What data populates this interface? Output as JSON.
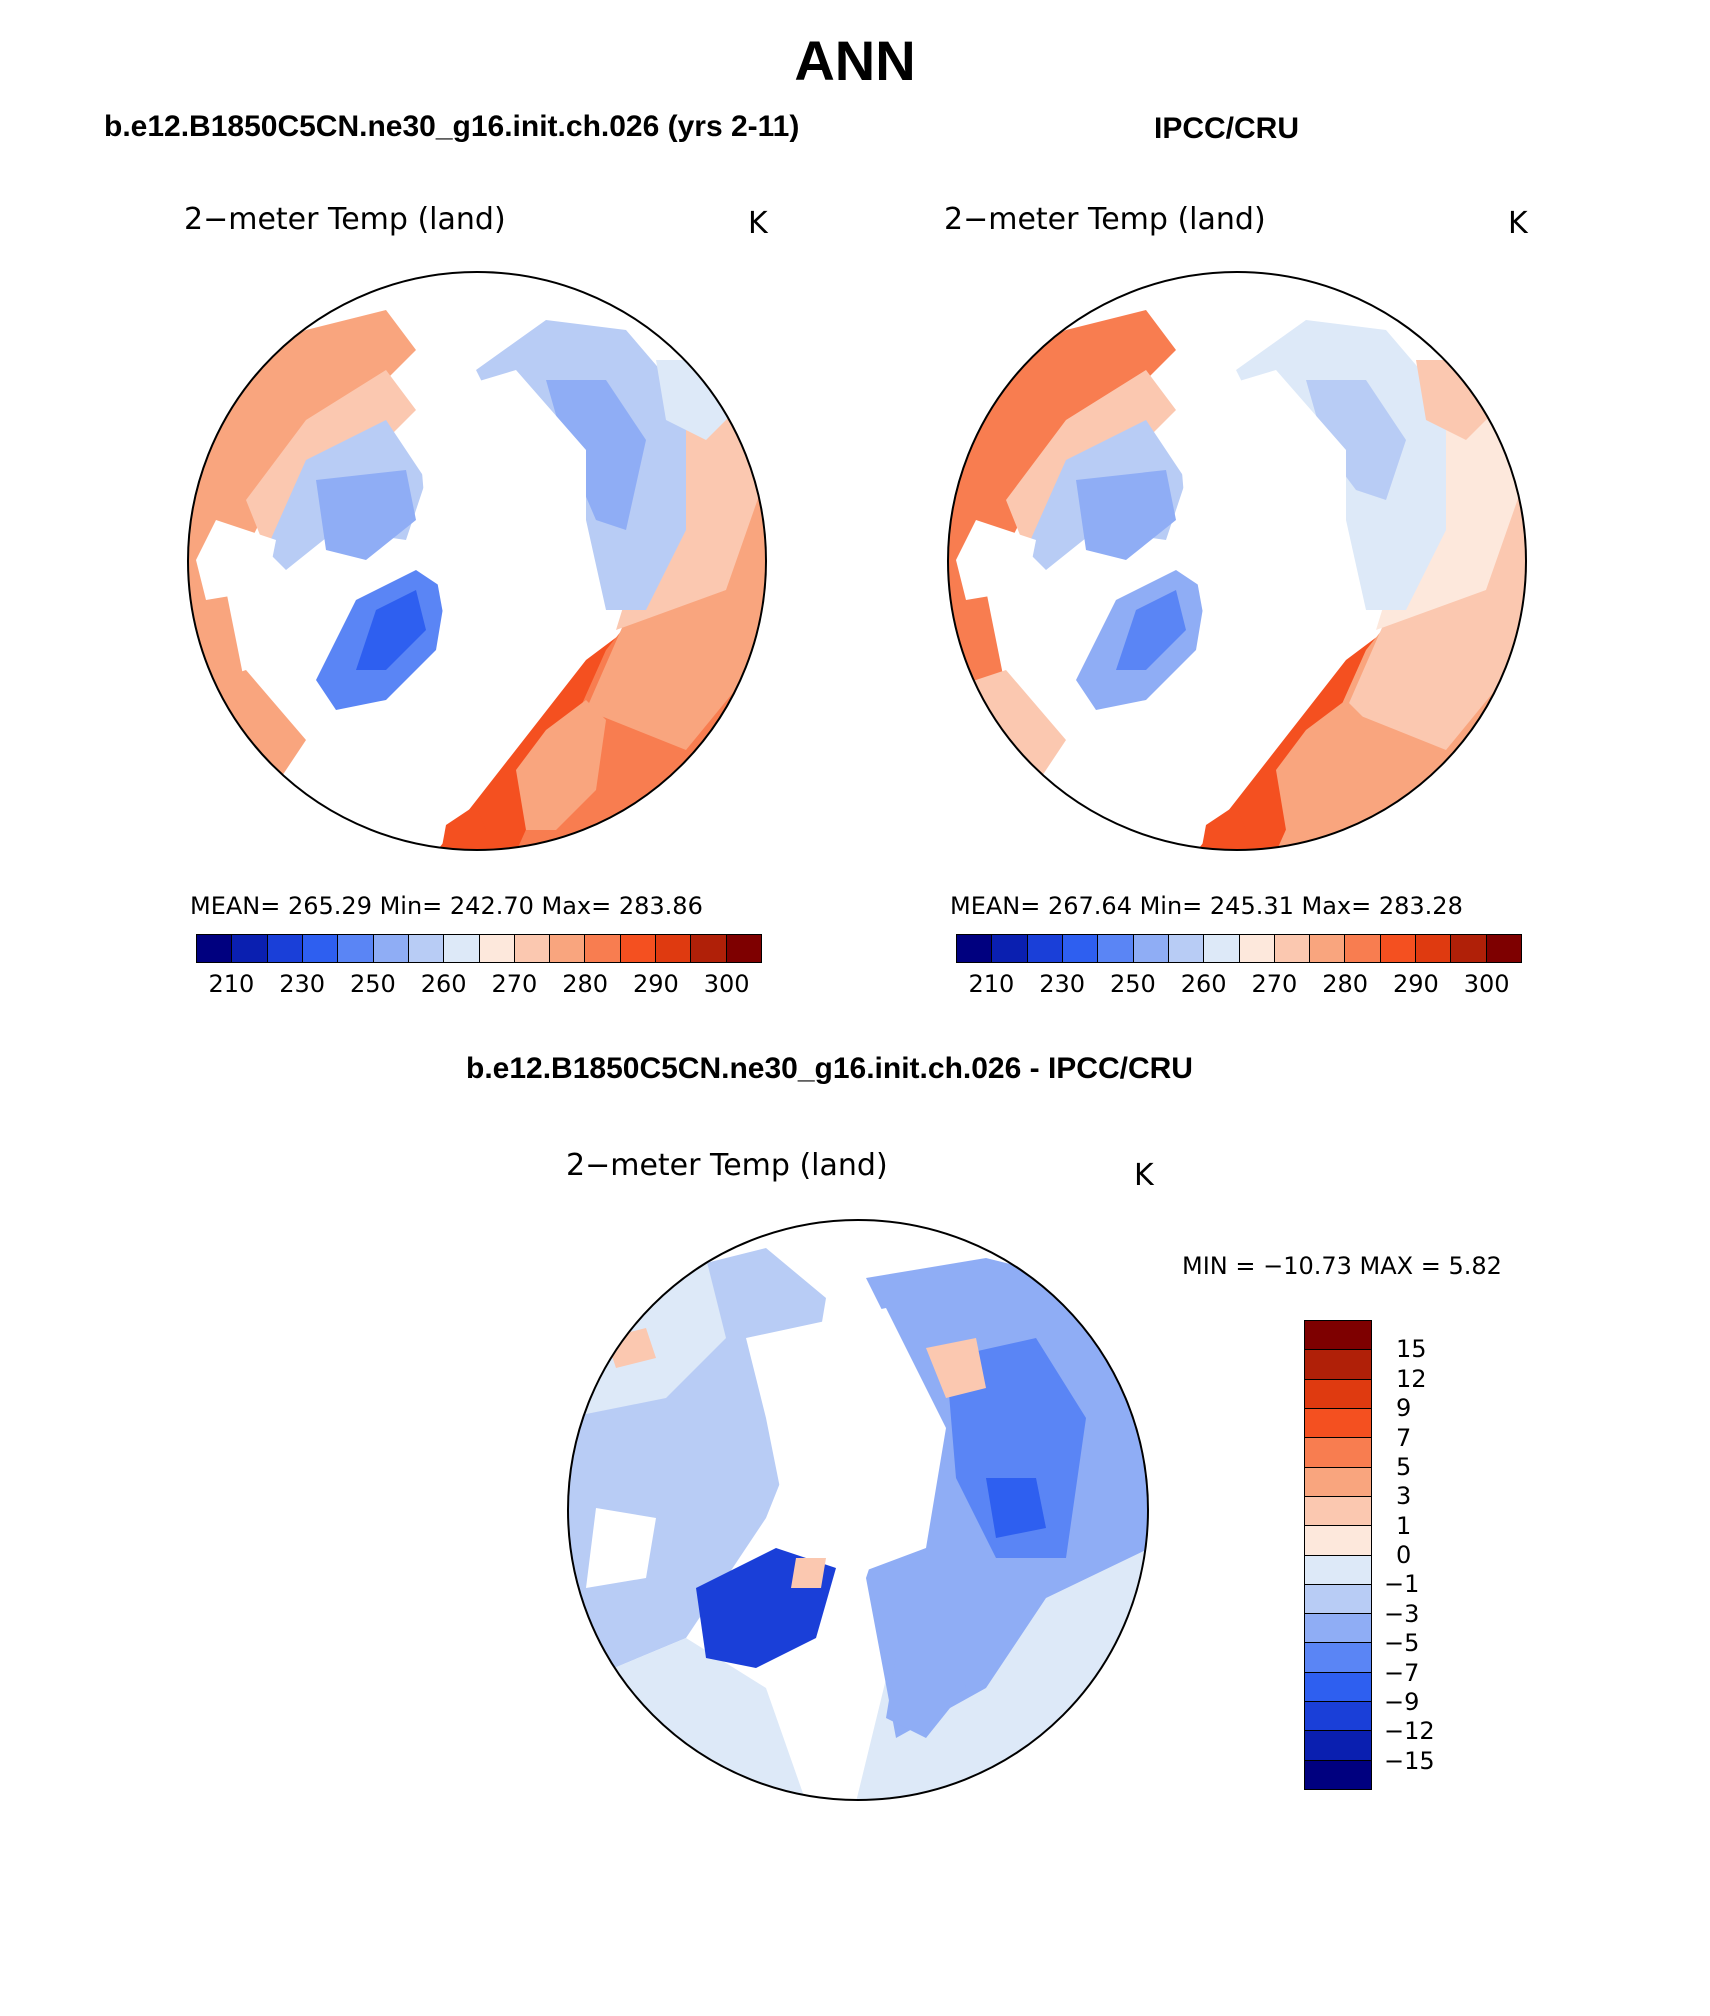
{
  "title": "ANN",
  "model_title": "b.e12.B1850C5CN.ne30_g16.init.ch.026 (yrs 2-11)",
  "obs_title": "IPCC/CRU",
  "diff_title": "b.e12.B1850C5CN.ne30_g16.init.ch.026 - IPCC/CRU",
  "panels": {
    "model": {
      "variable": "2−meter Temp (land)",
      "units": "K",
      "stats": "MEAN= 265.29   Min= 242.70   Max= 283.86"
    },
    "obs": {
      "variable": "2−meter Temp (land)",
      "units": "K",
      "stats": "MEAN= 267.64   Min= 245.31   Max= 283.28"
    },
    "diff": {
      "variable": "2−meter Temp (land)",
      "units": "K",
      "stats": "MIN = −10.73 MAX =    5.82"
    }
  },
  "abs_colorbar": {
    "colors": [
      "#00007f",
      "#0a1fb0",
      "#1a3fd8",
      "#2e5ff0",
      "#5a85f5",
      "#8fadf5",
      "#b8ccf5",
      "#dde9f8",
      "#fde8dc",
      "#fbc8b0",
      "#f9a57e",
      "#f87d50",
      "#f45020",
      "#df3a10",
      "#b02008",
      "#7e0000"
    ],
    "labels": [
      "210",
      "230",
      "250",
      "260",
      "270",
      "280",
      "290",
      "300"
    ]
  },
  "diff_colorbar": {
    "colors": [
      "#7e0000",
      "#b02008",
      "#df3a10",
      "#f45020",
      "#f87d50",
      "#f9a57e",
      "#fbc8b0",
      "#fde8dc",
      "#dde9f8",
      "#b8ccf5",
      "#8fadf5",
      "#5a85f5",
      "#2e5ff0",
      "#1a3fd8",
      "#0a1fb0",
      "#00007f"
    ],
    "labels": [
      "15",
      "12",
      "9",
      "7",
      "5",
      "3",
      "1",
      "0",
      "−1",
      "−3",
      "−5",
      "−7",
      "−9",
      "−12",
      "−15"
    ]
  }
}
